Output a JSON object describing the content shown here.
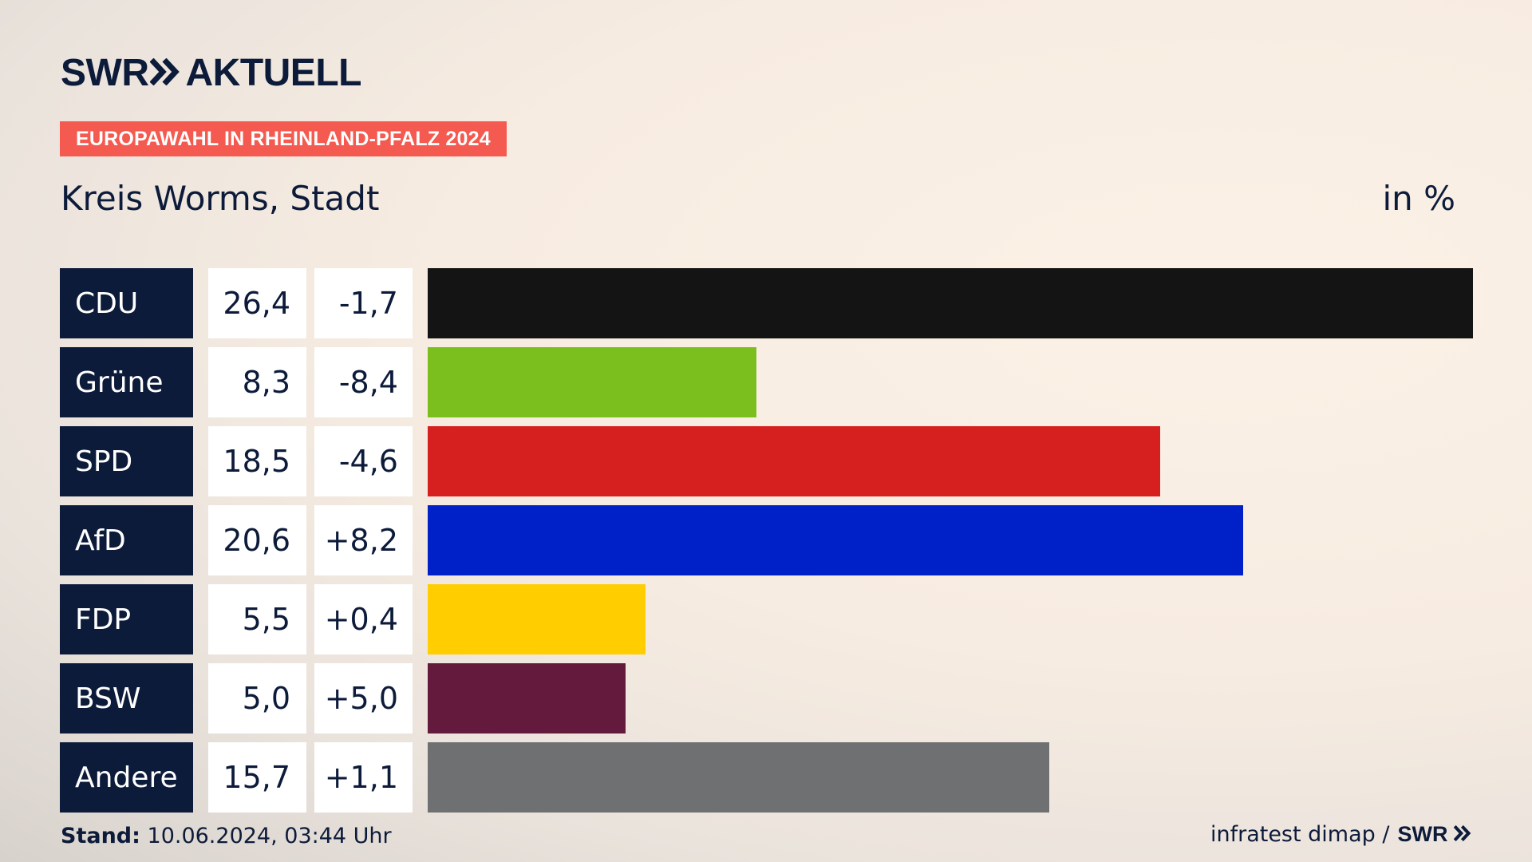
{
  "brand": {
    "logo_left": "SWR",
    "logo_right": "AKTUELL",
    "footer_logo": "SWR"
  },
  "banner": "EUROPAWAHL IN RHEINLAND-PFALZ 2024",
  "region": "Kreis Worms, Stadt",
  "unit": "in %",
  "footer": {
    "stand_label": "Stand:",
    "stand_value": "10.06.2024, 03:44 Uhr",
    "source": "infratest dimap /"
  },
  "colors": {
    "navy": "#0d1b3a",
    "banner": "#f45a4f"
  },
  "chart_data": {
    "type": "bar",
    "orientation": "horizontal",
    "categories": [
      "CDU",
      "Grüne",
      "SPD",
      "AfD",
      "FDP",
      "BSW",
      "Andere"
    ],
    "values": [
      26.4,
      8.3,
      18.5,
      20.6,
      5.5,
      5.0,
      15.7
    ],
    "value_labels": [
      "26,4",
      "8,3",
      "18,5",
      "20,6",
      "5,5",
      "5,0",
      "15,7"
    ],
    "diff_labels": [
      "-1,7",
      "-8,4",
      "-4,6",
      "+8,2",
      "+0,4",
      "+5,0",
      "+1,1"
    ],
    "bar_colors": [
      "#141414",
      "#7abf1e",
      "#d61f1f",
      "#0021c7",
      "#ffcd00",
      "#641a3c",
      "#6f7072"
    ],
    "xlim": [
      0,
      26.4
    ],
    "grid": false
  }
}
